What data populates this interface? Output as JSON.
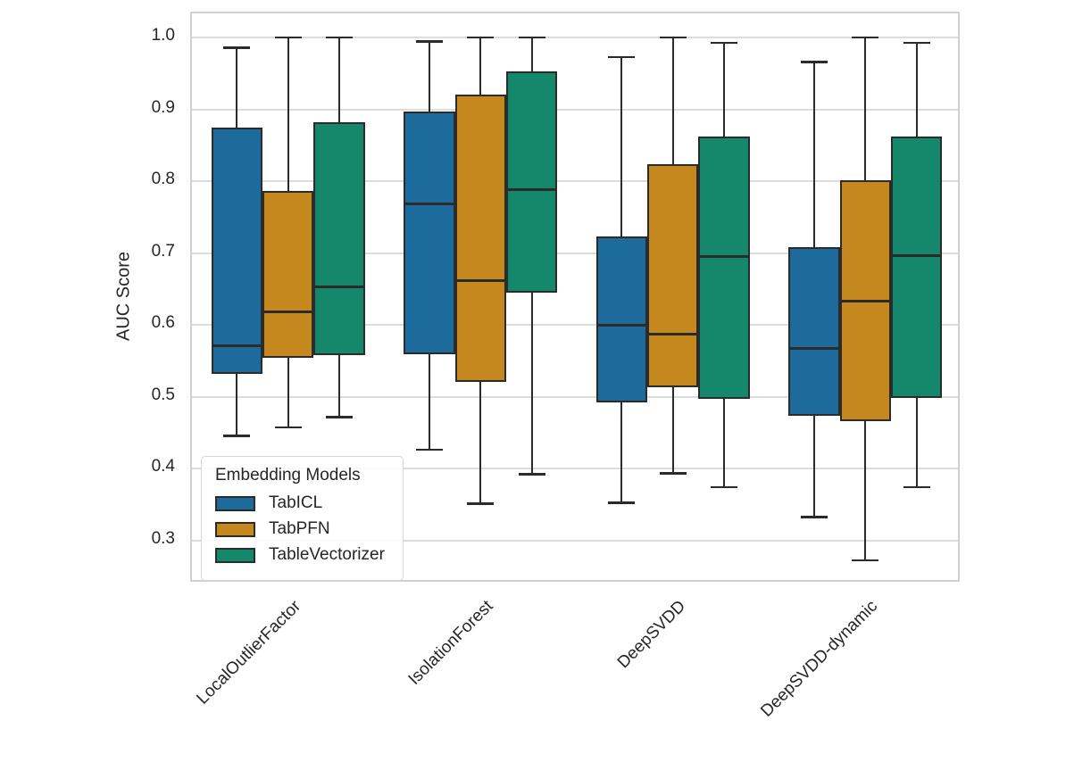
{
  "figure": {
    "background_color": "#ffffff",
    "text_color": "#262626",
    "grid_color": "#dcdcdc",
    "box_edge_color": "#2b2b2b"
  },
  "chart_data": {
    "type": "boxplot",
    "title": "",
    "xlabel": "",
    "ylabel": "AUC Score",
    "grid": "horizontal",
    "ylim": [
      0.2405,
      1.0335
    ],
    "yticks": [
      1.0,
      0.9,
      0.8,
      0.7,
      0.6,
      0.5,
      0.4,
      0.3
    ],
    "legend_title": "Embedding Models",
    "legend_position": "lower left",
    "categories": [
      "LocalOutlierFactor",
      "IsolationForest",
      "DeepSVDD",
      "DeepSVDD-dynamic"
    ],
    "series": [
      {
        "name": "TabICL",
        "color": "#1d6b9c",
        "boxes": [
          {
            "whisker_low": 0.446,
            "q1": 0.532,
            "median": 0.571,
            "q3": 0.875,
            "whisker_high": 0.986
          },
          {
            "whisker_low": 0.427,
            "q1": 0.559,
            "median": 0.769,
            "q3": 0.897,
            "whisker_high": 0.995
          },
          {
            "whisker_low": 0.353,
            "q1": 0.493,
            "median": 0.6,
            "q3": 0.723,
            "whisker_high": 0.973
          },
          {
            "whisker_low": 0.333,
            "q1": 0.474,
            "median": 0.567,
            "q3": 0.708,
            "whisker_high": 0.966
          }
        ]
      },
      {
        "name": "TabPFN",
        "color": "#c5881f",
        "boxes": [
          {
            "whisker_low": 0.458,
            "q1": 0.555,
            "median": 0.619,
            "q3": 0.787,
            "whisker_high": 1.0
          },
          {
            "whisker_low": 0.352,
            "q1": 0.521,
            "median": 0.662,
            "q3": 0.921,
            "whisker_high": 1.0
          },
          {
            "whisker_low": 0.394,
            "q1": 0.513,
            "median": 0.587,
            "q3": 0.824,
            "whisker_high": 1.0
          },
          {
            "whisker_low": 0.273,
            "q1": 0.466,
            "median": 0.633,
            "q3": 0.801,
            "whisker_high": 1.0
          }
        ]
      },
      {
        "name": "TableVectorizer",
        "color": "#15886b",
        "boxes": [
          {
            "whisker_low": 0.472,
            "q1": 0.558,
            "median": 0.653,
            "q3": 0.882,
            "whisker_high": 1.0
          },
          {
            "whisker_low": 0.393,
            "q1": 0.645,
            "median": 0.788,
            "q3": 0.953,
            "whisker_high": 1.0
          },
          {
            "whisker_low": 0.375,
            "q1": 0.497,
            "median": 0.695,
            "q3": 0.862,
            "whisker_high": 0.993
          },
          {
            "whisker_low": 0.375,
            "q1": 0.499,
            "median": 0.696,
            "q3": 0.862,
            "whisker_high": 0.993
          }
        ]
      }
    ]
  }
}
